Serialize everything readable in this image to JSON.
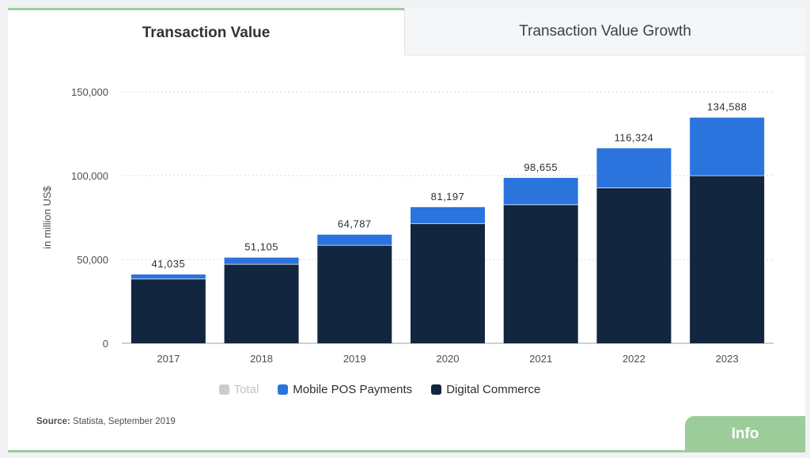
{
  "tabs": {
    "active": "Transaction Value",
    "inactive": "Transaction Value Growth"
  },
  "chart_data": {
    "type": "bar",
    "stacked": true,
    "categories": [
      "2017",
      "2018",
      "2019",
      "2020",
      "2021",
      "2022",
      "2023"
    ],
    "series": [
      {
        "name": "Digital Commerce",
        "color": "#12263f",
        "values": [
          38500,
          47300,
          58600,
          71500,
          82800,
          92800,
          100100
        ]
      },
      {
        "name": "Mobile POS Payments",
        "color": "#2b73dd",
        "values": [
          2535,
          3805,
          6187,
          9697,
          15855,
          23524,
          34488
        ]
      }
    ],
    "totals": [
      "41,035",
      "51,105",
      "64,787",
      "81,197",
      "98,655",
      "116,324",
      "134,588"
    ],
    "ylabel": "in million US$",
    "ylim": [
      0,
      150000
    ],
    "yticks": [
      {
        "value": 0,
        "label": "0"
      },
      {
        "value": 50000,
        "label": "50,000"
      },
      {
        "value": 100000,
        "label": "100,000"
      },
      {
        "value": 150000,
        "label": "150,000"
      }
    ],
    "grid": true,
    "legend": {
      "position": "bottom",
      "items": [
        {
          "label": "Total",
          "color": "#cccccc",
          "disabled": true
        },
        {
          "label": "Mobile POS Payments",
          "color": "#2b73dd",
          "disabled": false
        },
        {
          "label": "Digital Commerce",
          "color": "#12263f",
          "disabled": false
        }
      ]
    }
  },
  "source": {
    "label": "Source:",
    "text": "Statista, September 2019"
  },
  "info_button": "Info"
}
